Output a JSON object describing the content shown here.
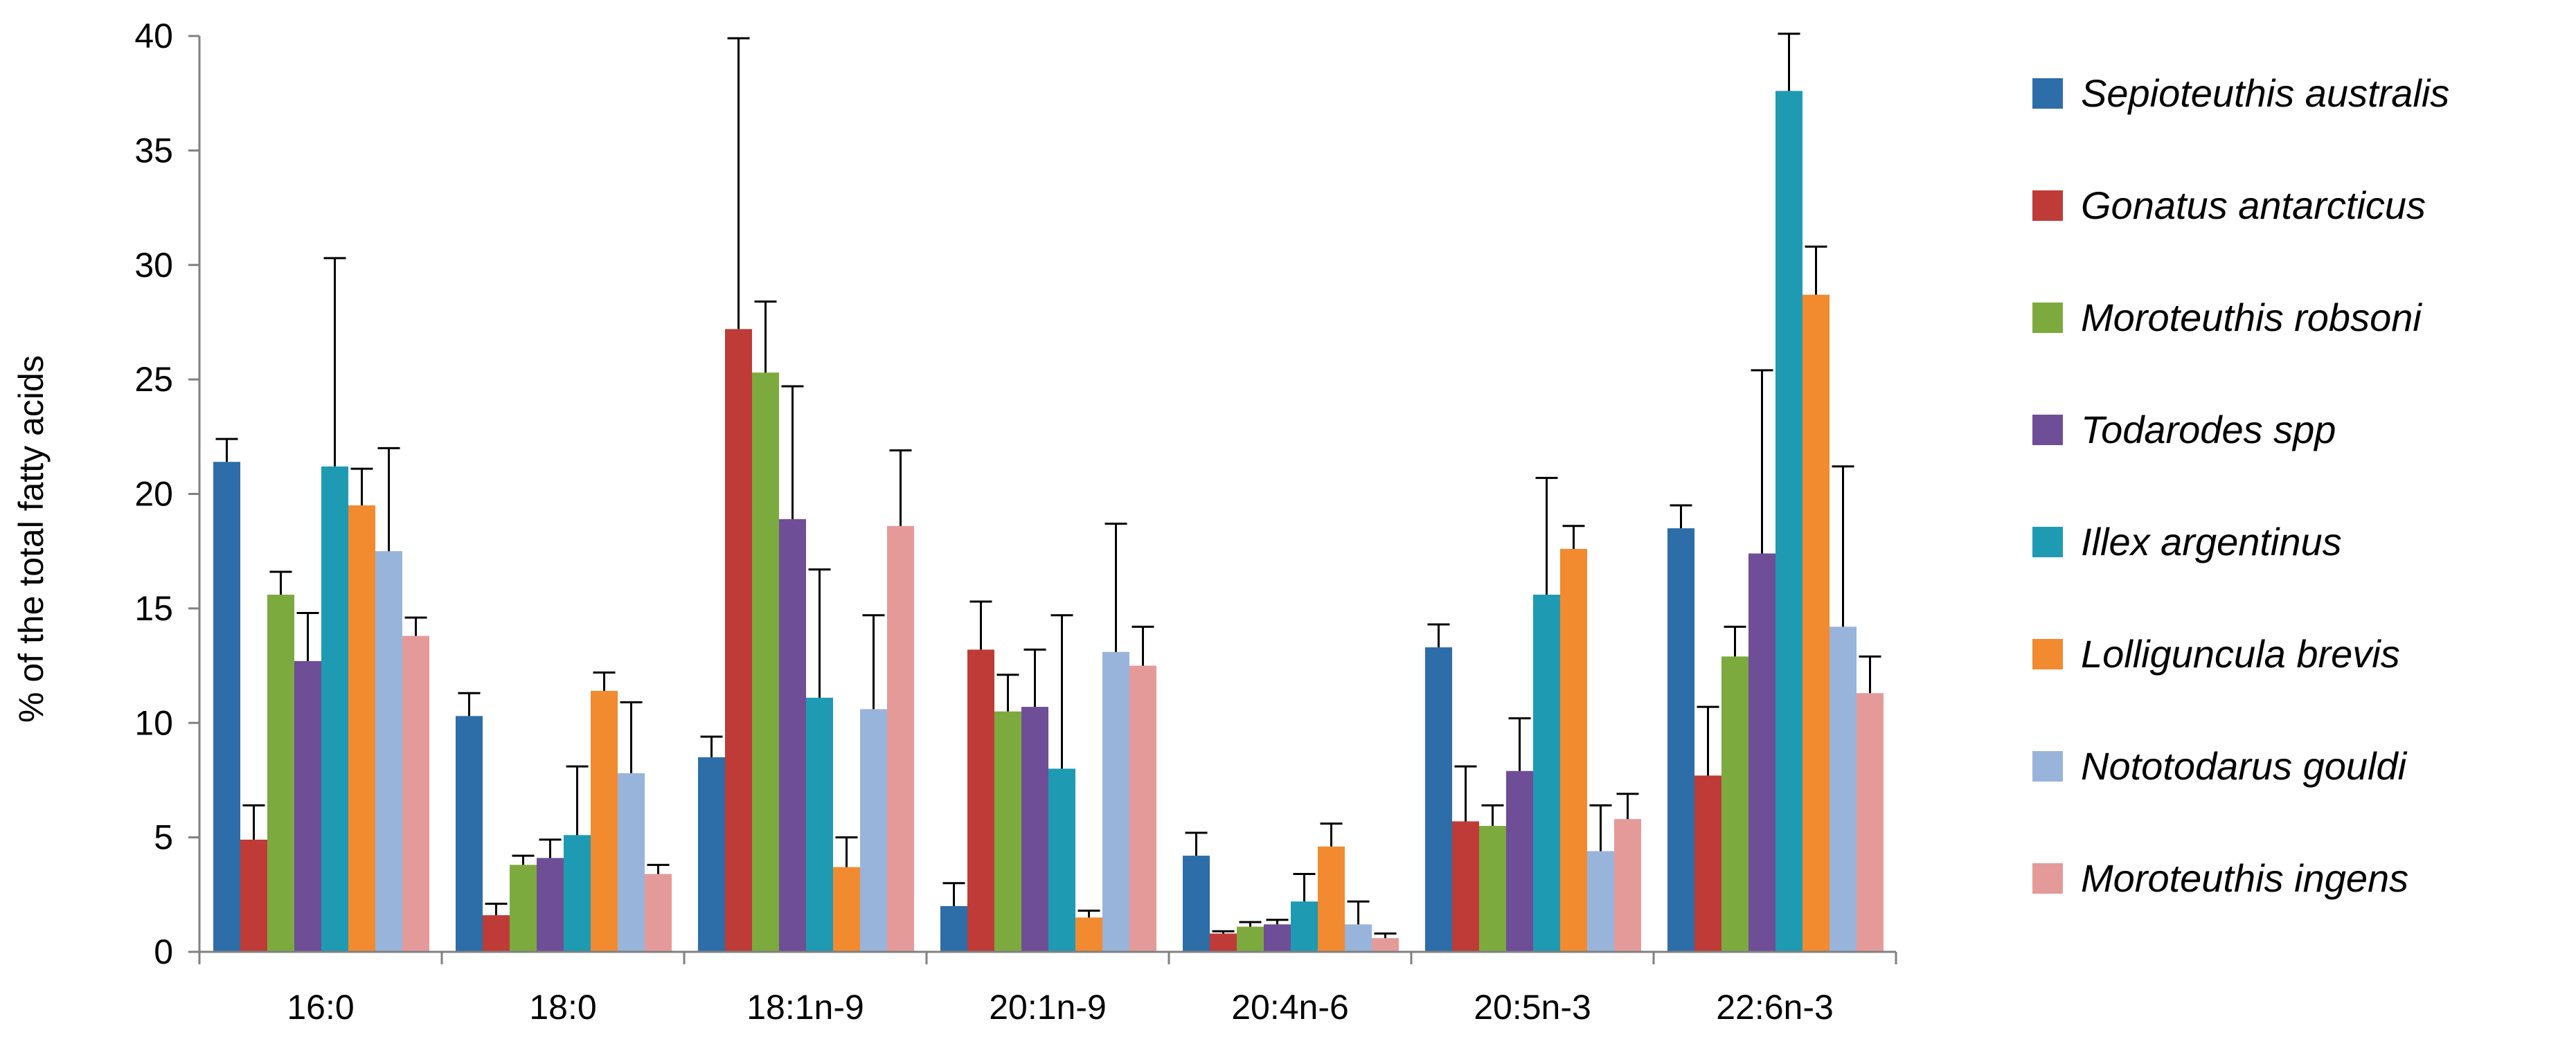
{
  "chart_data": {
    "type": "bar",
    "title": "",
    "xlabel": "",
    "ylabel": "% of the total fatty acids",
    "ylim": [
      0,
      40
    ],
    "yticks": [
      "0",
      "5",
      "10",
      "15",
      "20",
      "25",
      "30",
      "35",
      "40"
    ],
    "grid": false,
    "legend_position": "right",
    "categories": [
      "16:0",
      "18:0",
      "18:1n-9",
      "20:1n-9",
      "20:4n-6",
      "20:5n-3",
      "22:6n-3"
    ],
    "series": [
      {
        "name": "Sepioteuthis australis",
        "color": "#2D6DA8",
        "values": [
          21.4,
          10.3,
          8.5,
          2.0,
          4.2,
          13.3,
          18.5
        ],
        "errors": [
          1.0,
          1.0,
          0.9,
          1.0,
          1.0,
          1.0,
          1.0
        ]
      },
      {
        "name": "Gonatus antarcticus",
        "color": "#BE3B37",
        "values": [
          4.9,
          1.6,
          27.2,
          13.2,
          0.8,
          5.7,
          7.7
        ],
        "errors": [
          1.5,
          0.5,
          12.7,
          2.1,
          0.1,
          2.4,
          3.0
        ]
      },
      {
        "name": "Moroteuthis robsoni",
        "color": "#7DAA3E",
        "values": [
          15.6,
          3.8,
          25.3,
          10.5,
          1.1,
          5.5,
          12.9
        ],
        "errors": [
          1.0,
          0.4,
          3.1,
          1.6,
          0.2,
          0.9,
          1.3
        ]
      },
      {
        "name": "Todarodes spp",
        "color": "#6E4E96",
        "values": [
          12.7,
          4.1,
          18.9,
          10.7,
          1.2,
          7.9,
          17.4
        ],
        "errors": [
          2.1,
          0.8,
          5.8,
          2.5,
          0.2,
          2.3,
          8.0
        ]
      },
      {
        "name": "Illex argentinus",
        "color": "#1E9AB3",
        "values": [
          21.2,
          5.1,
          11.1,
          8.0,
          2.2,
          15.6,
          37.6
        ],
        "errors": [
          9.1,
          3.0,
          5.6,
          6.7,
          1.2,
          5.1,
          2.5
        ]
      },
      {
        "name": "Lolliguncula brevis",
        "color": "#F28A30",
        "values": [
          19.5,
          11.4,
          3.7,
          1.5,
          4.6,
          17.6,
          28.7
        ],
        "errors": [
          1.6,
          0.8,
          1.3,
          0.3,
          1.0,
          1.0,
          2.1
        ]
      },
      {
        "name": "Nototodarus gouldi",
        "color": "#98B4DB",
        "values": [
          17.5,
          7.8,
          10.6,
          13.1,
          1.2,
          4.4,
          14.2
        ],
        "errors": [
          4.5,
          3.1,
          4.1,
          5.6,
          1.0,
          2.0,
          7.0
        ]
      },
      {
        "name": "Moroteuthis ingens",
        "color": "#E59A9A",
        "values": [
          13.8,
          3.4,
          18.6,
          12.5,
          0.6,
          5.8,
          11.3
        ],
        "errors": [
          0.8,
          0.4,
          3.3,
          1.7,
          0.2,
          1.1,
          1.6
        ]
      }
    ]
  }
}
